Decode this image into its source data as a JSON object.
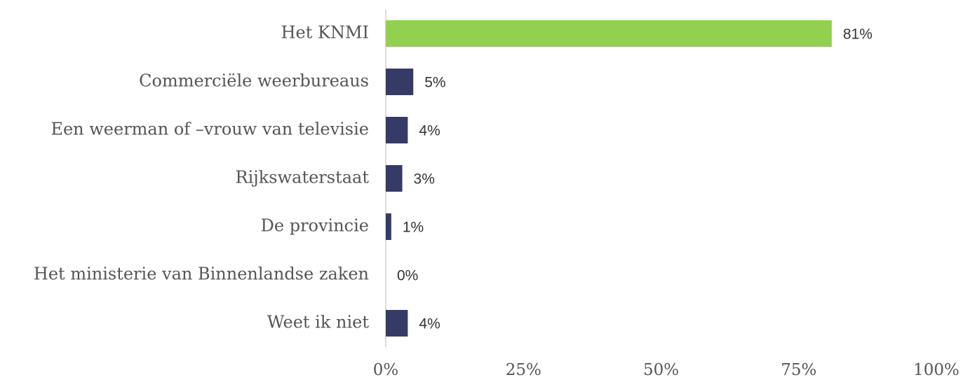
{
  "chart_data": {
    "type": "barh",
    "categories": [
      "Het KNMI",
      "Commerciële weerbureaus",
      "Een weerman of –vrouw van televisie",
      "Rijkswaterstaat",
      "De provincie",
      "Het ministerie van Binnenlandse zaken",
      "Weet ik niet"
    ],
    "values": [
      81,
      5,
      4,
      3,
      1,
      0,
      4
    ],
    "value_labels": [
      "81%",
      "5%",
      "4%",
      "3%",
      "1%",
      "0%",
      "4%"
    ],
    "colors": [
      "#92d050",
      "#363a66",
      "#363a66",
      "#363a66",
      "#363a66",
      "#363a66",
      "#363a66"
    ],
    "xlim": [
      0,
      100
    ],
    "xticks": [
      {
        "value": 0,
        "label": "0%"
      },
      {
        "value": 25,
        "label": "25%"
      },
      {
        "value": 50,
        "label": "50%"
      },
      {
        "value": 75,
        "label": "75%"
      },
      {
        "value": 100,
        "label": "100%"
      }
    ],
    "grid": false
  }
}
